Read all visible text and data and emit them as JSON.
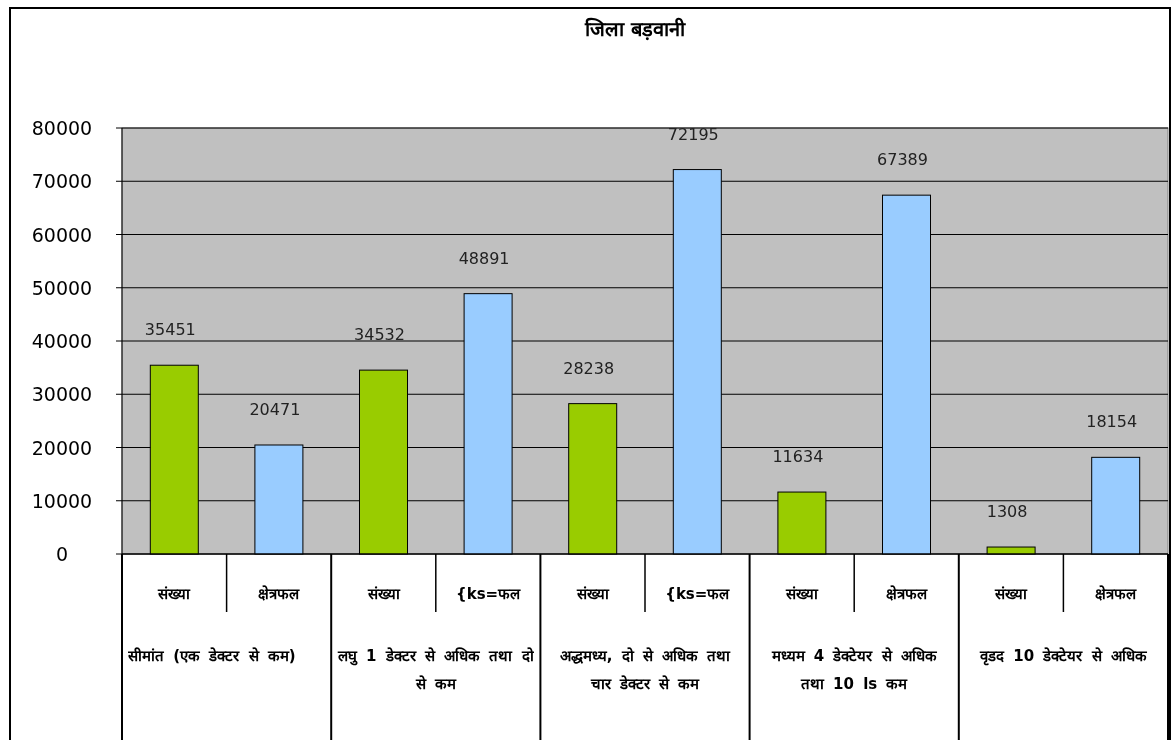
{
  "chart_data": {
    "type": "bar",
    "title": "जिला बड़वानी",
    "categories": [
      "संख्या",
      "क्षेत्रफल",
      "संख्या",
      "{ks=फल",
      "संख्या",
      "{ks=फल",
      "संख्या",
      "क्षेत्रफल",
      "संख्या",
      "क्षेत्रफल"
    ],
    "values": [
      35451,
      20471,
      34532,
      48891,
      28238,
      72195,
      11634,
      67389,
      1308,
      18154
    ],
    "colors": [
      "#99cc00",
      "#99ccff",
      "#99cc00",
      "#99ccff",
      "#99cc00",
      "#99ccff",
      "#99cc00",
      "#99ccff",
      "#99cc00",
      "#99ccff"
    ],
    "annotations": [
      "सीमांत (एक डेक्टर से कम)",
      "लघु 1 डेक्टर से अधिक तथा दो से कम",
      "अद्धमध्य, दो से अधिक तथा चार डेक्टर से कम",
      "मध्यम 4 डेक्टेयर से अधिक तथा 10 ls कम",
      "वृडद 10 डेक्टेयर से अधिक"
    ],
    "ylim": [
      0,
      80000
    ],
    "yticks": [
      0,
      10000,
      20000,
      30000,
      40000,
      50000,
      60000,
      70000,
      80000
    ],
    "grid": "y",
    "data_labels": true
  }
}
